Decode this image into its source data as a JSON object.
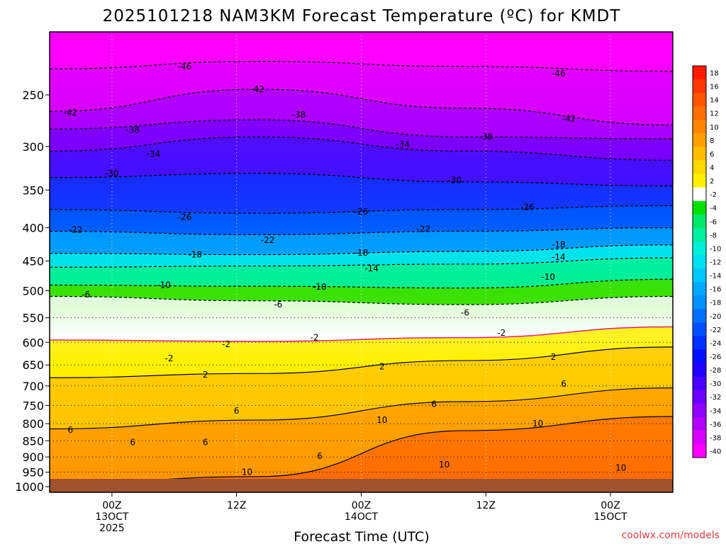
{
  "title": "2025101218 NAM3KM Forecast Temperature (ºC) for KMDT",
  "credit": "coolwx.com/models",
  "colors": {
    "ground": "#a0522d",
    "freezing_line": "#e0207a",
    "contour": "#000000"
  },
  "chart_data": {
    "type": "heatmap",
    "title": "2025101218 NAM3KM Forecast Temperature (ºC) for KMDT",
    "xlabel": "Forecast Time (UTC)",
    "ylabel": "",
    "y_scale": "log-pressure (inverted)",
    "ylim_hPa": [
      1000,
      200
    ],
    "y_ticks": [
      250,
      300,
      350,
      400,
      450,
      500,
      550,
      600,
      650,
      700,
      750,
      800,
      850,
      900,
      950,
      1000
    ],
    "x_ticks": [
      {
        "line1": "00Z",
        "line2": "13OCT",
        "line3": "2025"
      },
      {
        "line1": "12Z",
        "line2": "",
        "line3": ""
      },
      {
        "line1": "00Z",
        "line2": "14OCT",
        "line3": ""
      },
      {
        "line1": "12Z",
        "line2": "",
        "line3": ""
      },
      {
        "line1": "00Z",
        "line2": "15OCT",
        "line3": ""
      }
    ],
    "x_hours": [
      0,
      12,
      24,
      36,
      48
    ],
    "xlim_hours": [
      -6,
      54
    ],
    "grid": true,
    "legend": "right colorbar",
    "colorbar_labels": [
      18,
      16,
      14,
      12,
      10,
      8,
      6,
      4,
      2,
      -2,
      -4,
      -6,
      -8,
      -10,
      -12,
      -14,
      -16,
      -18,
      -20,
      -22,
      -24,
      -26,
      -28,
      -30,
      -32,
      -34,
      -36,
      -38,
      -40
    ],
    "colorbar_colors": [
      "#ff1a00",
      "#ff3800",
      "#ff5500",
      "#ff6e00",
      "#ff8800",
      "#ffa000",
      "#ffbe00",
      "#ffd800",
      "#fff000",
      "#ffffff",
      "#00e000",
      "#00e868",
      "#00f0a0",
      "#00f0d8",
      "#00e0f0",
      "#00c8ff",
      "#00a8ff",
      "#0090ff",
      "#0070ff",
      "#0050ff",
      "#0030ff",
      "#0010ff",
      "#2000ff",
      "#4800ff",
      "#6a00ff",
      "#9000ff",
      "#b400ff",
      "#d800ff",
      "#ff00ff"
    ],
    "contours": [
      {
        "value": -46,
        "pressure_hPa": [
          228,
          222,
          226,
          230
        ],
        "label": "-46"
      },
      {
        "value": -42,
        "pressure_hPa": [
          265,
          245,
          262,
          278
        ],
        "label": "-42"
      },
      {
        "value": -38,
        "pressure_hPa": [
          282,
          273,
          290,
          292
        ],
        "label": "-38"
      },
      {
        "value": -34,
        "pressure_hPa": [
          305,
          290,
          305,
          315
        ],
        "label": "-34"
      },
      {
        "value": -30,
        "pressure_hPa": [
          335,
          330,
          340,
          345
        ],
        "label": "-30"
      },
      {
        "value": -26,
        "pressure_hPa": [
          375,
          380,
          375,
          370
        ],
        "label": "-26"
      },
      {
        "value": -22,
        "pressure_hPa": [
          405,
          410,
          405,
          400
        ],
        "label": "-22"
      },
      {
        "value": -18,
        "pressure_hPa": [
          438,
          440,
          435,
          425
        ],
        "label": "-18"
      },
      {
        "value": -14,
        "pressure_hPa": [
          460,
          458,
          455,
          445
        ],
        "label": "-14"
      },
      {
        "value": -10,
        "pressure_hPa": [
          490,
          492,
          495,
          480
        ],
        "label": "-10"
      },
      {
        "value": -6,
        "pressure_hPa": [
          510,
          518,
          525,
          510
        ],
        "label": "-6"
      },
      {
        "value": -2,
        "pressure_hPa": [
          595,
          598,
          590,
          568
        ],
        "label": "-2"
      },
      {
        "value": 2,
        "pressure_hPa": [
          680,
          670,
          640,
          610
        ],
        "label": "2"
      },
      {
        "value": 6,
        "pressure_hPa": [
          815,
          790,
          740,
          705
        ],
        "label": "6"
      },
      {
        "value": 10,
        "pressure_hPa": [
          990,
          965,
          820,
          780
        ],
        "label": "10"
      }
    ],
    "contour_label_positions": [
      {
        "label": "-46",
        "x_hours": 7,
        "pressure_hPa": 226
      },
      {
        "label": "-46",
        "x_hours": 43,
        "pressure_hPa": 232
      },
      {
        "label": "-42",
        "x_hours": 14,
        "pressure_hPa": 245
      },
      {
        "label": "-42",
        "x_hours": -4,
        "pressure_hPa": 266
      },
      {
        "label": "-42",
        "x_hours": 44,
        "pressure_hPa": 272
      },
      {
        "label": "-38",
        "x_hours": 2,
        "pressure_hPa": 283
      },
      {
        "label": "-38",
        "x_hours": 18,
        "pressure_hPa": 268
      },
      {
        "label": "-38",
        "x_hours": 36,
        "pressure_hPa": 290
      },
      {
        "label": "-34",
        "x_hours": 4,
        "pressure_hPa": 308
      },
      {
        "label": "-34",
        "x_hours": 28,
        "pressure_hPa": 298
      },
      {
        "label": "-30",
        "x_hours": 0,
        "pressure_hPa": 330
      },
      {
        "label": "-30",
        "x_hours": 33,
        "pressure_hPa": 338
      },
      {
        "label": "-26",
        "x_hours": 7,
        "pressure_hPa": 385
      },
      {
        "label": "-26",
        "x_hours": 24,
        "pressure_hPa": 378
      },
      {
        "label": "-26",
        "x_hours": 40,
        "pressure_hPa": 372
      },
      {
        "label": "-22",
        "x_hours": -3.5,
        "pressure_hPa": 403
      },
      {
        "label": "-22",
        "x_hours": 15,
        "pressure_hPa": 418
      },
      {
        "label": "-22",
        "x_hours": 30,
        "pressure_hPa": 402
      },
      {
        "label": "-18",
        "x_hours": 8,
        "pressure_hPa": 440
      },
      {
        "label": "-18",
        "x_hours": 24,
        "pressure_hPa": 437
      },
      {
        "label": "-18",
        "x_hours": 43,
        "pressure_hPa": 425
      },
      {
        "label": "-14",
        "x_hours": 25,
        "pressure_hPa": 462
      },
      {
        "label": "-14",
        "x_hours": 43,
        "pressure_hPa": 444
      },
      {
        "label": "-10",
        "x_hours": 5,
        "pressure_hPa": 490
      },
      {
        "label": "-10",
        "x_hours": 20,
        "pressure_hPa": 493
      },
      {
        "label": "-10",
        "x_hours": 42,
        "pressure_hPa": 476
      },
      {
        "label": "-6",
        "x_hours": -2.5,
        "pressure_hPa": 507
      },
      {
        "label": "-6",
        "x_hours": 16,
        "pressure_hPa": 525
      },
      {
        "label": "-6",
        "x_hours": 34,
        "pressure_hPa": 540
      },
      {
        "label": "-2",
        "x_hours": 5.5,
        "pressure_hPa": 635
      },
      {
        "label": "-2",
        "x_hours": 11,
        "pressure_hPa": 604
      },
      {
        "label": "-2",
        "x_hours": 19.5,
        "pressure_hPa": 590
      },
      {
        "label": "-2",
        "x_hours": 37.5,
        "pressure_hPa": 580
      },
      {
        "label": "2",
        "x_hours": 9,
        "pressure_hPa": 673
      },
      {
        "label": "2",
        "x_hours": 26,
        "pressure_hPa": 654
      },
      {
        "label": "2",
        "x_hours": 42.5,
        "pressure_hPa": 632
      },
      {
        "label": "6",
        "x_hours": 12,
        "pressure_hPa": 765
      },
      {
        "label": "6",
        "x_hours": 31,
        "pressure_hPa": 747
      },
      {
        "label": "6",
        "x_hours": 43.5,
        "pressure_hPa": 695
      },
      {
        "label": "6",
        "x_hours": -4,
        "pressure_hPa": 818
      },
      {
        "label": "6",
        "x_hours": 2,
        "pressure_hPa": 855
      },
      {
        "label": "6",
        "x_hours": 9,
        "pressure_hPa": 855
      },
      {
        "label": "6",
        "x_hours": 20,
        "pressure_hPa": 898
      },
      {
        "label": "10",
        "x_hours": 26,
        "pressure_hPa": 790
      },
      {
        "label": "10",
        "x_hours": 41,
        "pressure_hPa": 800
      },
      {
        "label": "10",
        "x_hours": 13,
        "pressure_hPa": 950
      },
      {
        "label": "10",
        "x_hours": 32,
        "pressure_hPa": 925
      },
      {
        "label": "10",
        "x_hours": 49,
        "pressure_hPa": 935
      }
    ]
  }
}
